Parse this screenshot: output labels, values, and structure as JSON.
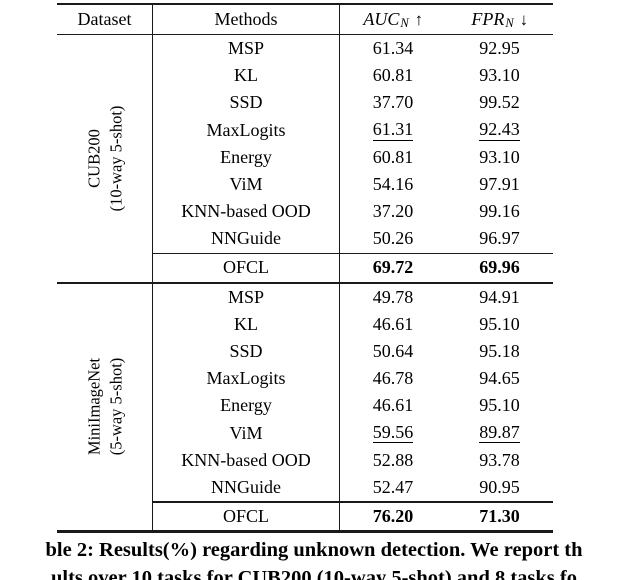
{
  "table": {
    "headers": {
      "dataset": "Dataset",
      "methods": "Methods",
      "auc_label": "AUC",
      "auc_sub": "N",
      "auc_arrow": "↑",
      "fpr_label": "FPR",
      "fpr_sub": "N",
      "fpr_arrow": "↓"
    },
    "sections": [
      {
        "dataset_line1": "CUB200",
        "dataset_line2": "(10-way 5-shot)",
        "rows": [
          {
            "method": "MSP",
            "auc": "61.34",
            "fpr": "92.95"
          },
          {
            "method": "KL",
            "auc": "60.81",
            "fpr": "93.10"
          },
          {
            "method": "SSD",
            "auc": "37.70",
            "fpr": "99.52"
          },
          {
            "method": "MaxLogits",
            "auc": "61.31",
            "fpr": "92.43"
          },
          {
            "method": "Energy",
            "auc": "60.81",
            "fpr": "93.10"
          },
          {
            "method": "ViM",
            "auc": "54.16",
            "fpr": "97.91"
          },
          {
            "method": "KNN-based OOD",
            "auc": "37.20",
            "fpr": "99.16"
          },
          {
            "method": "NNGuide",
            "auc": "50.26",
            "fpr": "96.97"
          }
        ],
        "ofcl": {
          "method": "OFCL",
          "auc": "69.72",
          "fpr": "69.96"
        }
      },
      {
        "dataset_line1": "MiniImageNet",
        "dataset_line2": "(5-way 5-shot)",
        "rows": [
          {
            "method": "MSP",
            "auc": "49.78",
            "fpr": "94.91"
          },
          {
            "method": "KL",
            "auc": "46.61",
            "fpr": "95.10"
          },
          {
            "method": "SSD",
            "auc": "50.64",
            "fpr": "95.18"
          },
          {
            "method": "MaxLogits",
            "auc": "46.78",
            "fpr": "94.65"
          },
          {
            "method": "Energy",
            "auc": "46.61",
            "fpr": "95.10"
          },
          {
            "method": "ViM",
            "auc": "59.56",
            "fpr": "89.87"
          },
          {
            "method": "KNN-based OOD",
            "auc": "52.88",
            "fpr": "93.78"
          },
          {
            "method": "NNGuide",
            "auc": "52.47",
            "fpr": "90.95"
          }
        ],
        "ofcl": {
          "method": "OFCL",
          "auc": "76.20",
          "fpr": "71.30"
        }
      }
    ]
  },
  "caption": {
    "line1": "ble 2: Results(%) regarding unknown detection. We report th",
    "line2": "ults over 10 tasks for CUB200 (10-way 5-shot) and 8 tasks fo"
  }
}
